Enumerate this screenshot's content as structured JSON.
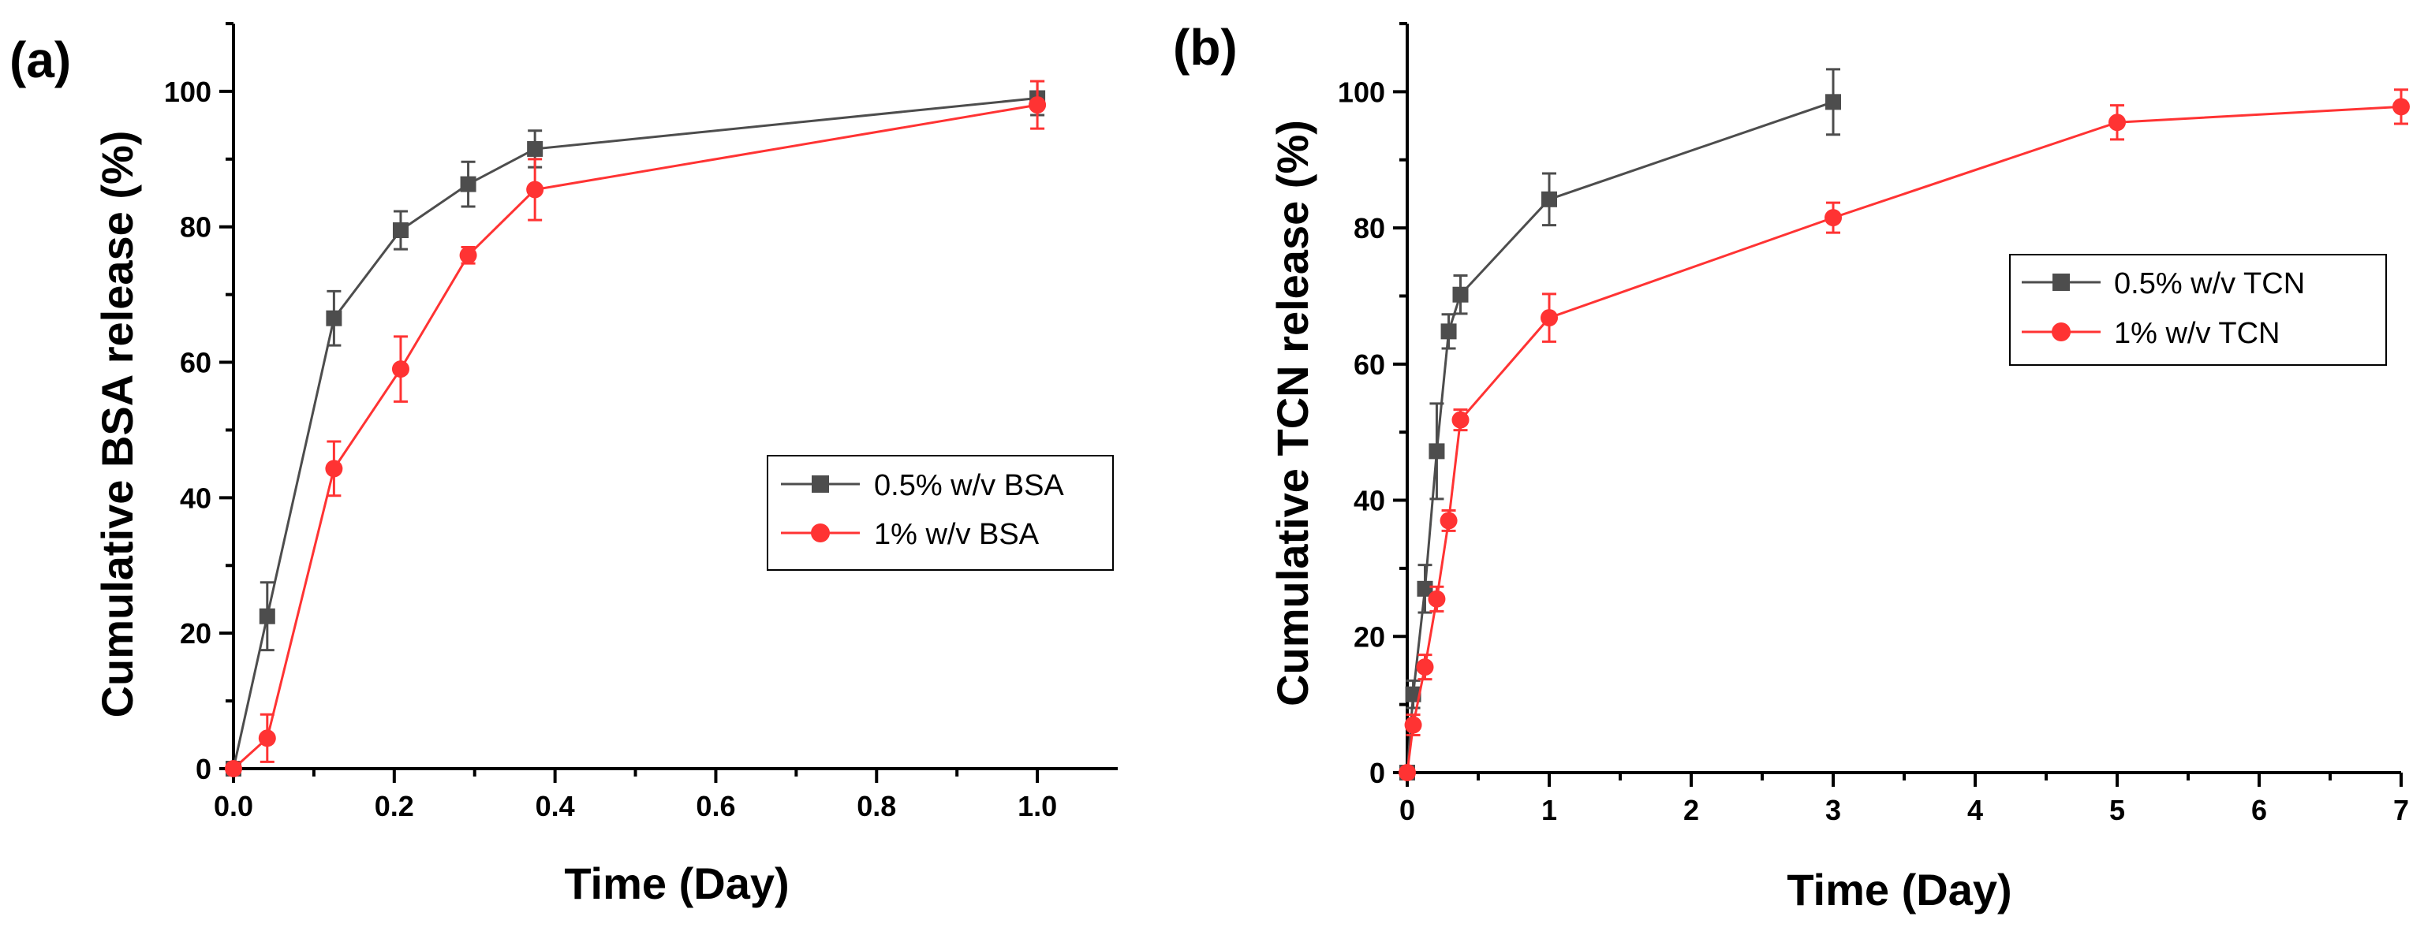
{
  "chart_data": [
    {
      "type": "line",
      "panel_label": "(a)",
      "title": "",
      "xlabel": "Time (Day)",
      "ylabel": "Cumulative BSA release (%)",
      "xlim": [
        0,
        1.1
      ],
      "ylim": [
        0,
        110
      ],
      "x_ticks": [
        0.0,
        0.2,
        0.4,
        0.6,
        0.8,
        1.0
      ],
      "x_tick_labels": [
        "0.0",
        "0.2",
        "0.4",
        "0.6",
        "0.8",
        "1.0"
      ],
      "y_ticks": [
        0,
        20,
        40,
        60,
        80,
        100
      ],
      "y_tick_labels": [
        "0",
        "20",
        "40",
        "60",
        "80",
        "100"
      ],
      "legend_position": "center-right",
      "series": [
        {
          "name": "0.5% w/v BSA",
          "color": "#4d4d4d",
          "marker": "square",
          "x": [
            0,
            0.042,
            0.125,
            0.208,
            0.292,
            0.375,
            1.0
          ],
          "y": [
            0,
            22.5,
            66.5,
            79.5,
            86.3,
            91.5,
            99.0
          ],
          "err": [
            0,
            5.0,
            4.0,
            2.8,
            3.3,
            2.7,
            2.5
          ]
        },
        {
          "name": "1% w/v BSA",
          "color": "#ff3333",
          "marker": "circle",
          "x": [
            0,
            0.042,
            0.125,
            0.208,
            0.292,
            0.375,
            1.0
          ],
          "y": [
            0,
            4.5,
            44.3,
            59.0,
            75.8,
            85.5,
            98.0
          ],
          "err": [
            0,
            3.5,
            4.0,
            4.8,
            1.2,
            4.5,
            3.5
          ]
        }
      ]
    },
    {
      "type": "line",
      "panel_label": "(b)",
      "title": "",
      "xlabel": "Time (Day)",
      "ylabel": "Cumulative TCN release (%)",
      "xlim": [
        0,
        7
      ],
      "ylim": [
        0,
        110
      ],
      "x_ticks": [
        0,
        1,
        2,
        3,
        4,
        5,
        6,
        7
      ],
      "x_tick_labels": [
        "0",
        "1",
        "2",
        "3",
        "4",
        "5",
        "6",
        "7"
      ],
      "y_ticks": [
        0,
        20,
        40,
        60,
        80,
        100
      ],
      "y_tick_labels": [
        "0",
        "20",
        "40",
        "60",
        "80",
        "100"
      ],
      "legend_position": "top-right",
      "series": [
        {
          "name": "0.5% w/v TCN",
          "color": "#4d4d4d",
          "marker": "square",
          "x": [
            0,
            0.042,
            0.125,
            0.208,
            0.292,
            0.375,
            1.0,
            3.0
          ],
          "y": [
            0,
            11.5,
            27.0,
            47.2,
            64.8,
            70.2,
            84.2,
            98.5
          ],
          "err": [
            0,
            2.0,
            3.5,
            7.0,
            2.5,
            2.8,
            3.8,
            4.8
          ]
        },
        {
          "name": "1% w/v TCN",
          "color": "#ff3333",
          "marker": "circle",
          "x": [
            0,
            0.042,
            0.125,
            0.208,
            0.292,
            0.375,
            1.0,
            3.0,
            5.0,
            7.0
          ],
          "y": [
            0,
            7.0,
            15.5,
            25.5,
            37.0,
            51.8,
            66.8,
            81.5,
            95.5,
            97.8
          ],
          "err": [
            0,
            1.5,
            1.8,
            1.8,
            1.5,
            1.5,
            3.5,
            2.2,
            2.5,
            2.5
          ]
        }
      ]
    }
  ]
}
